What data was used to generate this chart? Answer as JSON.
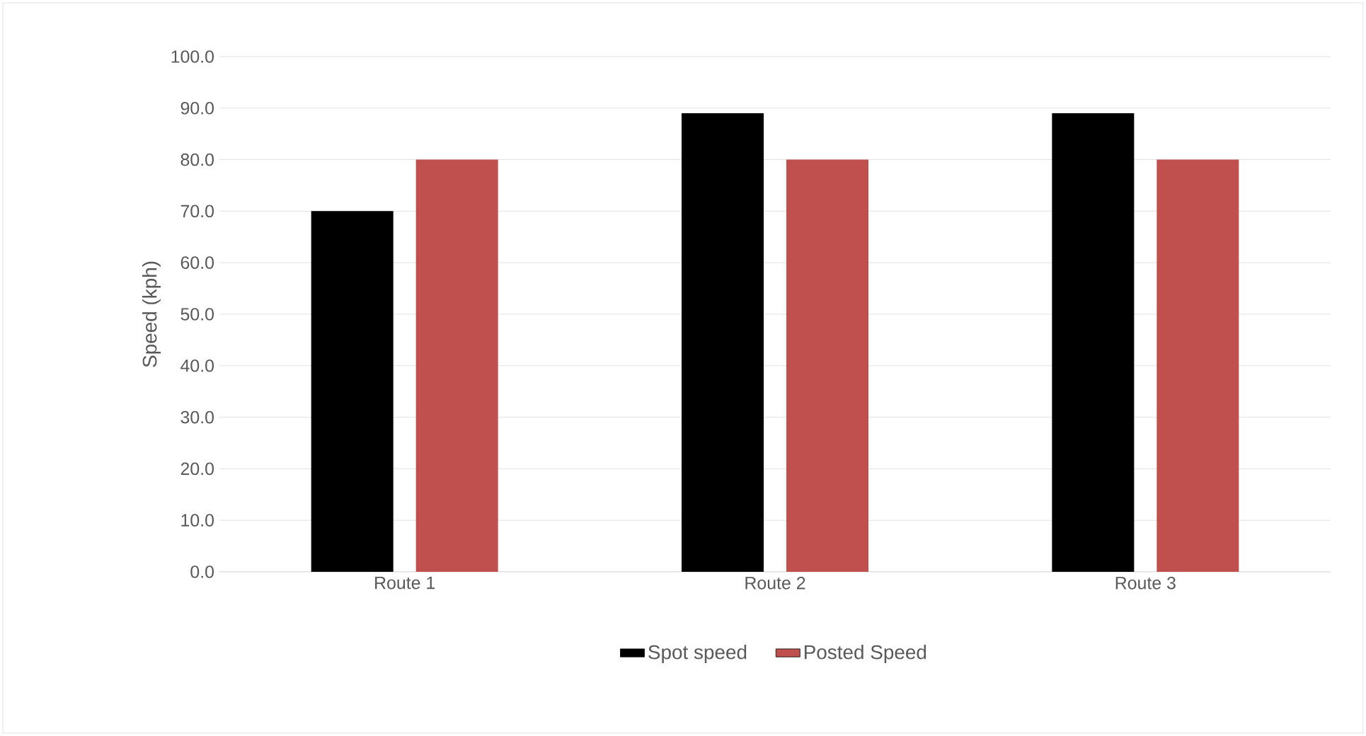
{
  "chart_data": {
    "type": "bar",
    "ylabel": "Speed (kph)",
    "categories": [
      "Route 1",
      "Route 2",
      "Route 3"
    ],
    "series": [
      {
        "name": "Spot speed",
        "color": "#000000",
        "values": [
          70,
          89,
          89
        ]
      },
      {
        "name": "Posted Speed",
        "color": "#c0504d",
        "values": [
          80,
          80,
          80
        ]
      }
    ],
    "ylim": [
      0,
      100
    ],
    "yticks": [
      {
        "value": 0,
        "label": "0.0"
      },
      {
        "value": 10,
        "label": "10.0"
      },
      {
        "value": 20,
        "label": "20.0"
      },
      {
        "value": 30,
        "label": "30.0"
      },
      {
        "value": 40,
        "label": "40.0"
      },
      {
        "value": 50,
        "label": "50.0"
      },
      {
        "value": 60,
        "label": "60.0"
      },
      {
        "value": 70,
        "label": "70.0"
      },
      {
        "value": 80,
        "label": "80.0"
      },
      {
        "value": 90,
        "label": "90.0"
      },
      {
        "value": 100,
        "label": "100.0"
      }
    ],
    "grid": "y",
    "legend": "bottom"
  }
}
